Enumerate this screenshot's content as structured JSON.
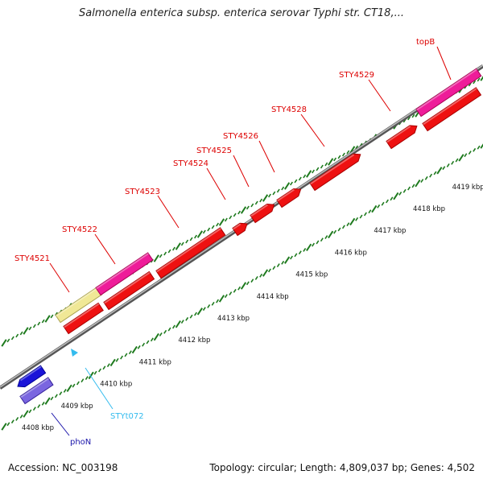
{
  "title": "Salmonella enterica subsp. enterica serovar Typhi str. CT18,...",
  "footer": {
    "accession": "Accession: NC_003198",
    "info": "Topology: circular; Length: 4,809,037 bp; Genes: 4,502"
  },
  "colors": {
    "backbone": "#8a8a8a",
    "tick": "#1e7a1e",
    "gene_red": "#ee1111",
    "gene_pink": "#ee1c99",
    "gene_yellow": "#f0e896",
    "gene_blue": "#1a14d8",
    "gene_violet": "#7a66e0",
    "label_red": "#dd0000",
    "label_blue": "#1a14aa",
    "label_cyan": "#33bbee"
  },
  "scale_labels": [
    "4408 kbp",
    "4409 kbp",
    "4410 kbp",
    "4411 kbp",
    "4412 kbp",
    "4413 kbp",
    "4414 kbp",
    "4415 kbp",
    "4416 kbp",
    "4417 kbp",
    "4418 kbp",
    "4419 kbp"
  ],
  "gene_labels": [
    {
      "text": "STY4521",
      "color": "label_red"
    },
    {
      "text": "STY4522",
      "color": "label_red"
    },
    {
      "text": "STY4523",
      "color": "label_red"
    },
    {
      "text": "STY4524",
      "color": "label_red"
    },
    {
      "text": "STY4525",
      "color": "label_red"
    },
    {
      "text": "STY4526",
      "color": "label_red"
    },
    {
      "text": "STY4528",
      "color": "label_red"
    },
    {
      "text": "STY4529",
      "color": "label_red"
    },
    {
      "text": "topB",
      "color": "label_red"
    },
    {
      "text": "STYt072",
      "color": "label_cyan"
    },
    {
      "text": "phoN",
      "color": "label_blue"
    }
  ]
}
